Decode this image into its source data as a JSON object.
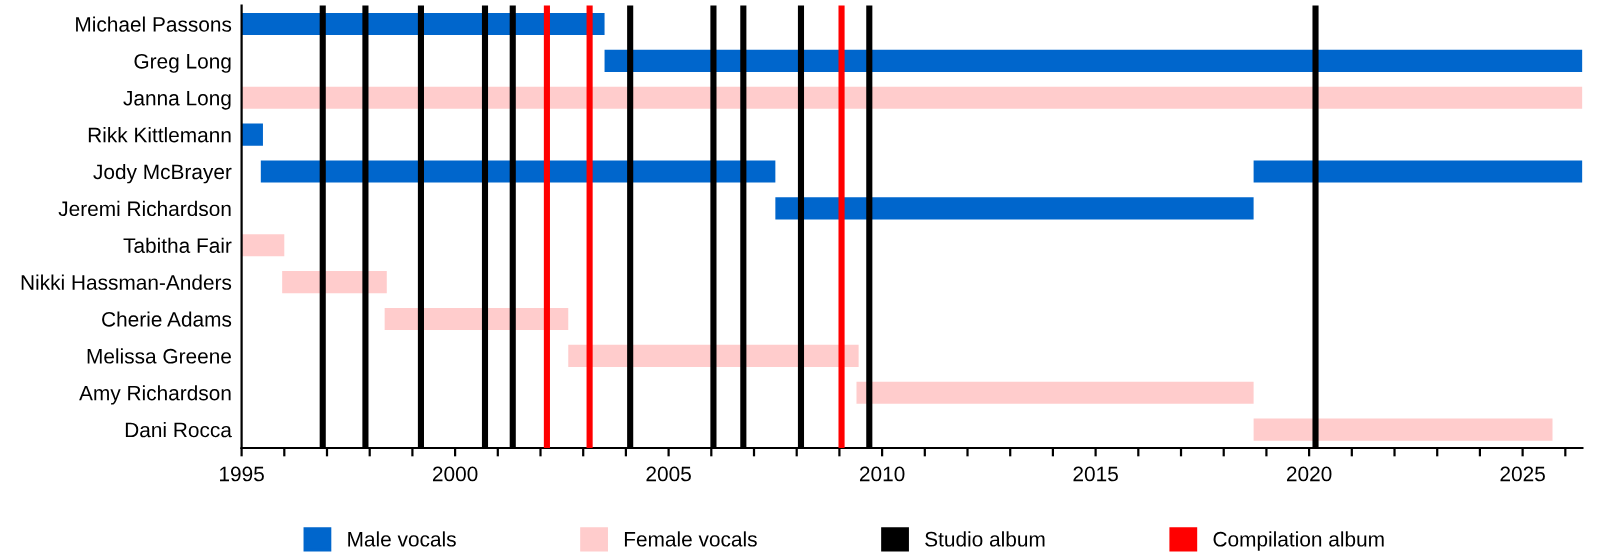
{
  "chart_data": {
    "type": "bar",
    "orientation": "horizontal",
    "categories": [
      "Michael Passons",
      "Greg Long",
      "Janna Long",
      "Rikk Kittlemann",
      "Jody McBrayer",
      "Jeremi Richardson",
      "Tabitha Fair",
      "Nikki Hassman-Anders",
      "Cherie Adams",
      "Melissa Greene",
      "Amy Richardson",
      "Dani Rocca"
    ],
    "series": [
      {
        "name": "Male vocals",
        "color": "#0066cc",
        "base": [
          1995,
          2003.5,
          null,
          1995,
          1995.45,
          2007.5,
          null,
          null,
          null,
          null,
          null,
          null
        ],
        "values": [
          8.5,
          22.9,
          null,
          0.5,
          12.05,
          11.2,
          null,
          null,
          null,
          null,
          null,
          null
        ]
      },
      {
        "color": "#0066cc",
        "base": [
          null,
          null,
          null,
          null,
          2018.7,
          null,
          null,
          null,
          null,
          null,
          null,
          null
        ],
        "values": [
          null,
          null,
          null,
          null,
          7.7,
          null,
          null,
          null,
          null,
          null,
          null,
          null
        ]
      },
      {
        "name": "Female vocals",
        "color": "#ffcccc",
        "base": [
          null,
          null,
          1995,
          null,
          null,
          null,
          1995,
          1995.95,
          1998.35,
          2002.65,
          2009.4,
          2018.7
        ],
        "values": [
          null,
          null,
          31.4,
          null,
          null,
          null,
          1,
          2.45,
          4.3,
          6.8,
          9.3,
          7
        ]
      }
    ],
    "xlim": [
      1995,
      2026.4
    ],
    "xticks": [
      1995,
      {
        "value": 1996,
        "label": null
      },
      {
        "value": 1997,
        "label": null
      },
      {
        "value": 1998,
        "label": null
      },
      {
        "value": 1999,
        "label": null
      },
      2000,
      {
        "value": 2001,
        "label": null
      },
      {
        "value": 2002,
        "label": null
      },
      {
        "value": 2003,
        "label": null
      },
      {
        "value": 2004,
        "label": null
      },
      2005,
      {
        "value": 2006,
        "label": null
      },
      {
        "value": 2007,
        "label": null
      },
      {
        "value": 2008,
        "label": null
      },
      {
        "value": 2009,
        "label": null
      },
      2010,
      {
        "value": 2011,
        "label": null
      },
      {
        "value": 2012,
        "label": null
      },
      {
        "value": 2013,
        "label": null
      },
      {
        "value": 2014,
        "label": null
      },
      2015,
      {
        "value": 2016,
        "label": null
      },
      {
        "value": 2017,
        "label": null
      },
      {
        "value": 2018,
        "label": null
      },
      {
        "value": 2019,
        "label": null
      },
      2020,
      {
        "value": 2021,
        "label": null
      },
      {
        "value": 2022,
        "label": null
      },
      {
        "value": 2023,
        "label": null
      },
      {
        "value": 2024,
        "label": null
      },
      2025,
      {
        "value": 2026,
        "label": null
      }
    ],
    "ref_lines": [
      {
        "axis": "x",
        "value": 1996.9,
        "label": "Studio album",
        "color": "#000000"
      },
      {
        "axis": "x",
        "value": 1997.9,
        "color": "#000000"
      },
      {
        "axis": "x",
        "value": 1999.2,
        "color": "#000000"
      },
      {
        "axis": "x",
        "value": 2000.7,
        "color": "#000000"
      },
      {
        "axis": "x",
        "value": 2001.35,
        "color": "#000000"
      },
      {
        "axis": "x",
        "value": 2004.1,
        "color": "#000000"
      },
      {
        "axis": "x",
        "value": 2006.05,
        "color": "#000000"
      },
      {
        "axis": "x",
        "value": 2006.75,
        "color": "#000000"
      },
      {
        "axis": "x",
        "value": 2008.1,
        "color": "#000000"
      },
      {
        "axis": "x",
        "value": 2009.7,
        "color": "#000000"
      },
      {
        "axis": "x",
        "value": 2020.15,
        "color": "#000000"
      },
      {
        "axis": "x",
        "value": 2002.15,
        "label": "Compilation album",
        "color": "#ff0000"
      },
      {
        "axis": "x",
        "value": 2003.15,
        "color": "#ff0000"
      },
      {
        "axis": "x",
        "value": 2009.05,
        "color": "#ff0000"
      }
    ],
    "grid": false,
    "legend": "bottom"
  }
}
